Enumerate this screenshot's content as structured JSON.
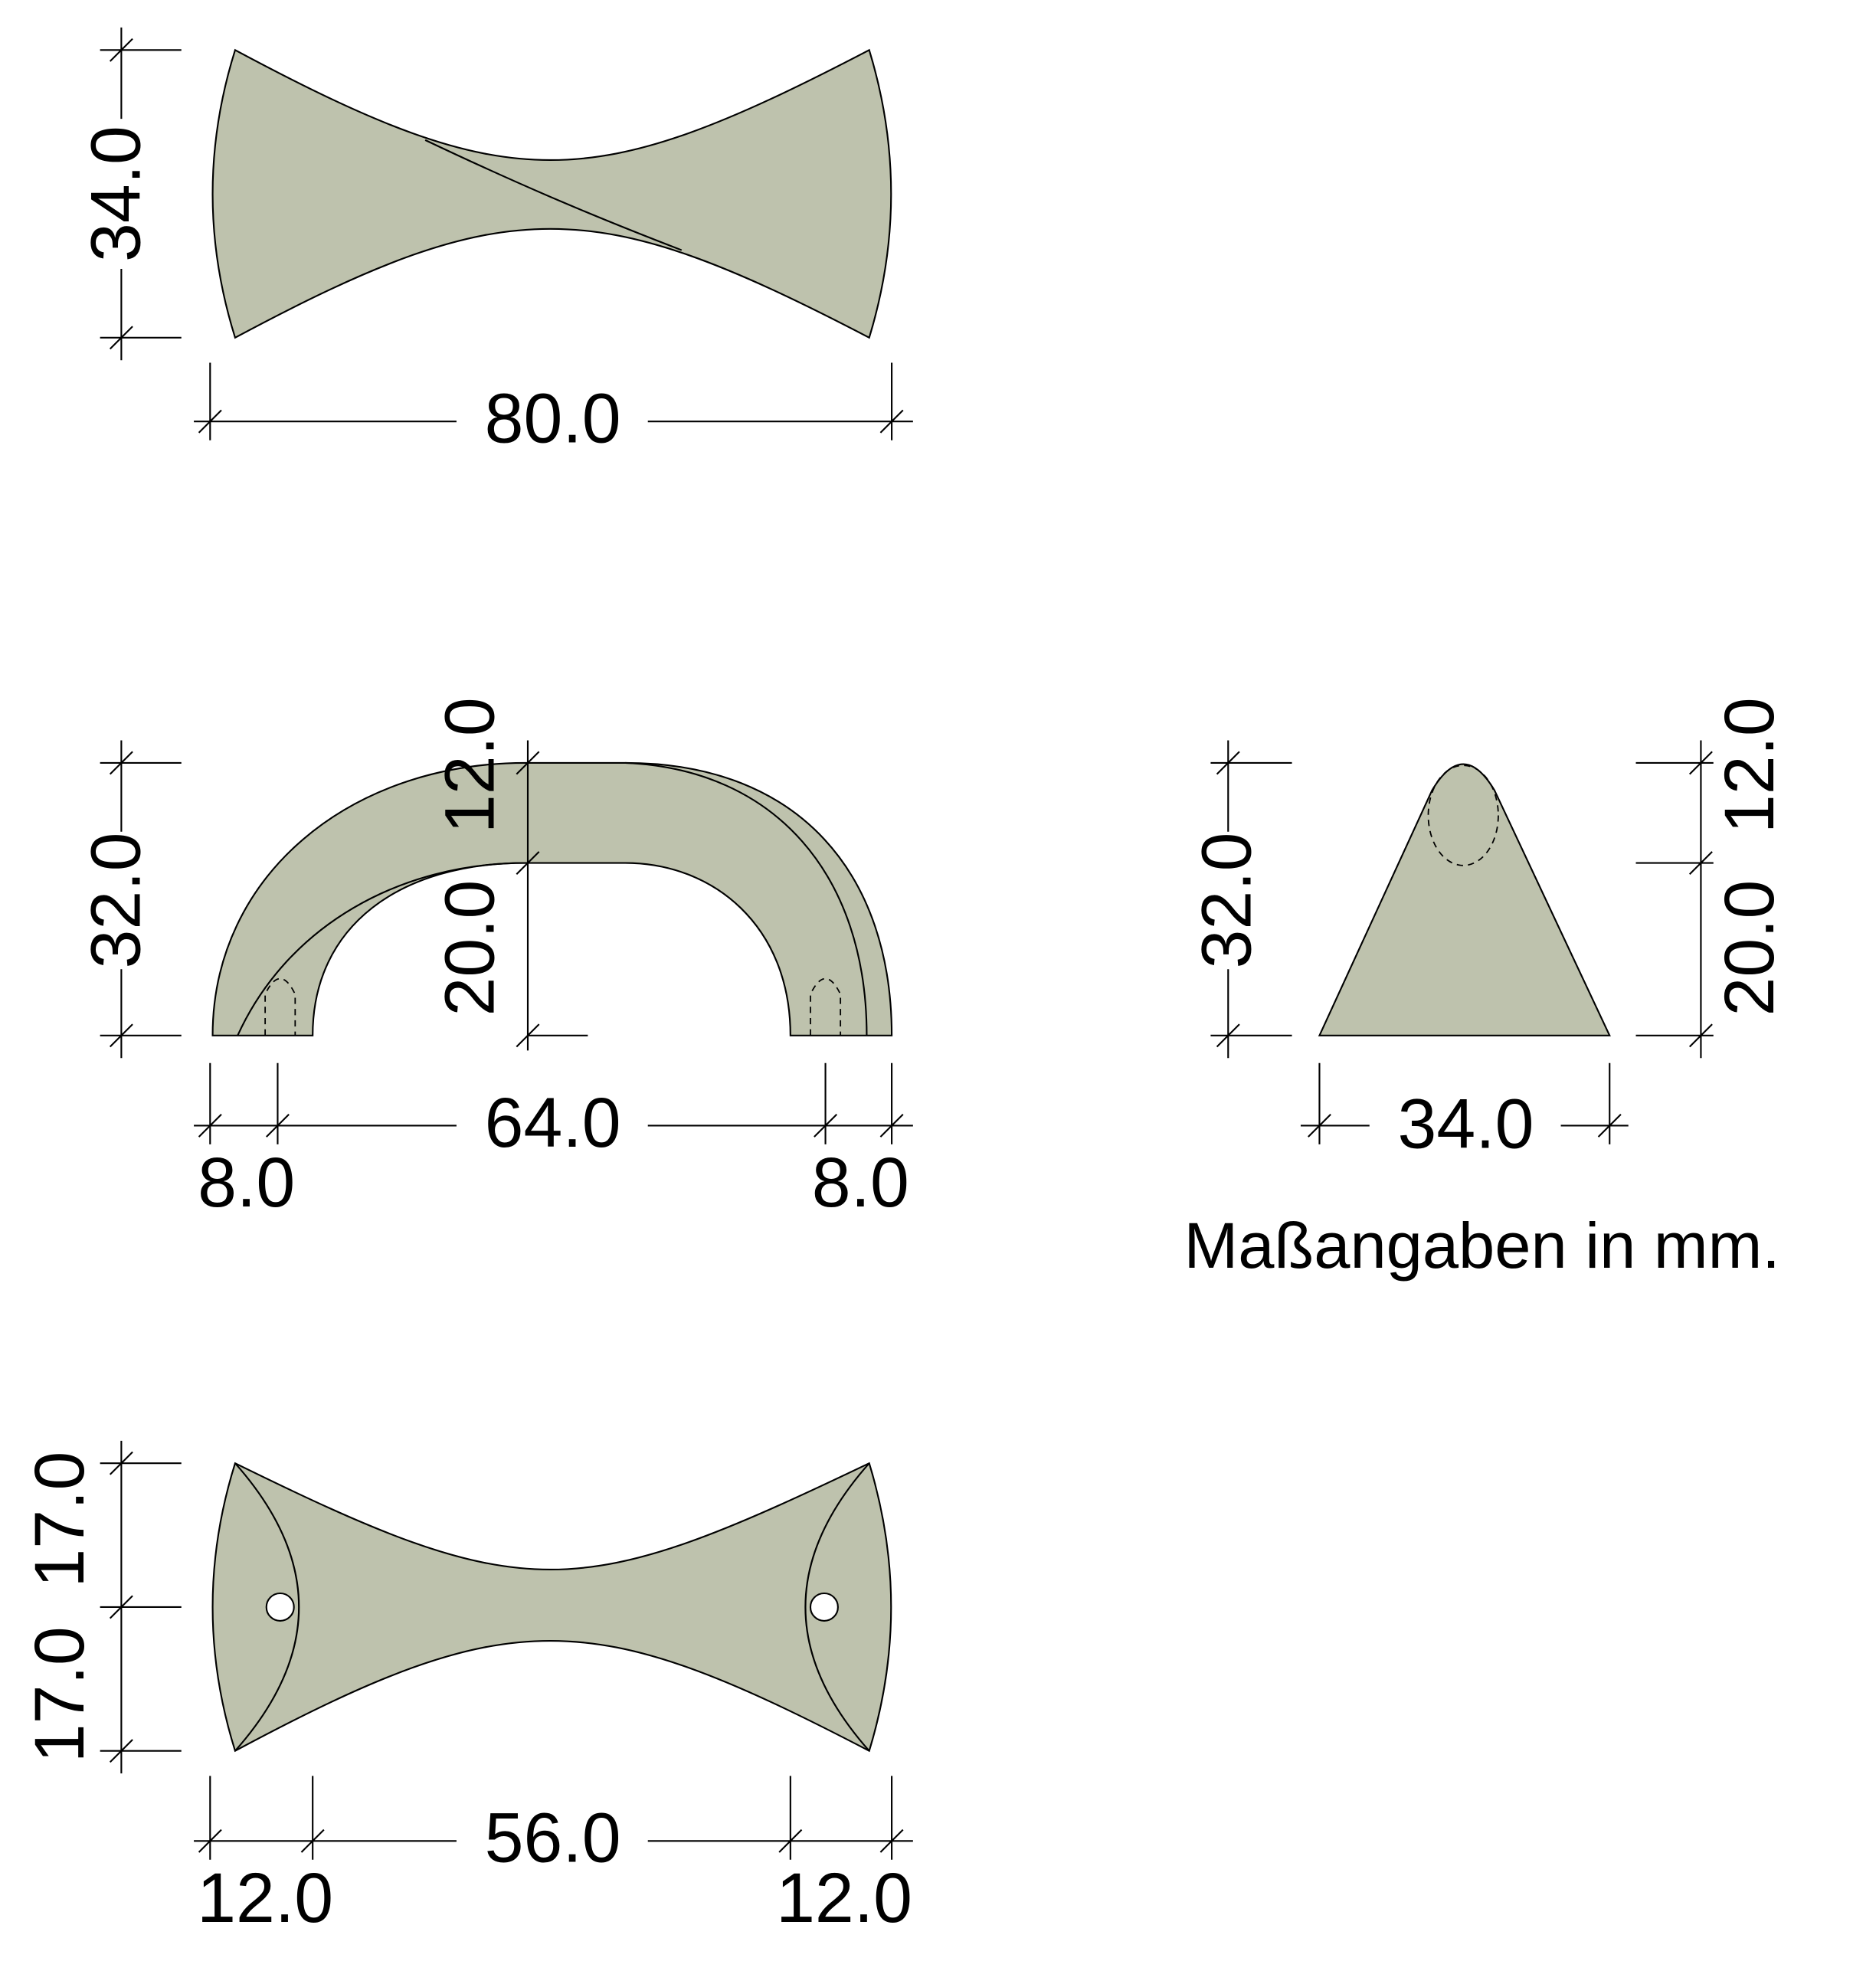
{
  "top_view": {
    "height": "34.0",
    "width": "80.0"
  },
  "side_view": {
    "height": "32.0",
    "upper_height": "12.0",
    "lower_height": "20.0",
    "span": "64.0",
    "left_offset": "8.0",
    "right_offset": "8.0"
  },
  "end_view": {
    "height": "32.0",
    "upper_height": "12.0",
    "lower_height": "20.0",
    "width": "34.0"
  },
  "note": "Maßangaben in mm.",
  "bottom_view": {
    "upper_half": "17.0",
    "lower_half": "17.0",
    "span": "56.0",
    "left_offset": "12.0",
    "right_offset": "12.0"
  }
}
